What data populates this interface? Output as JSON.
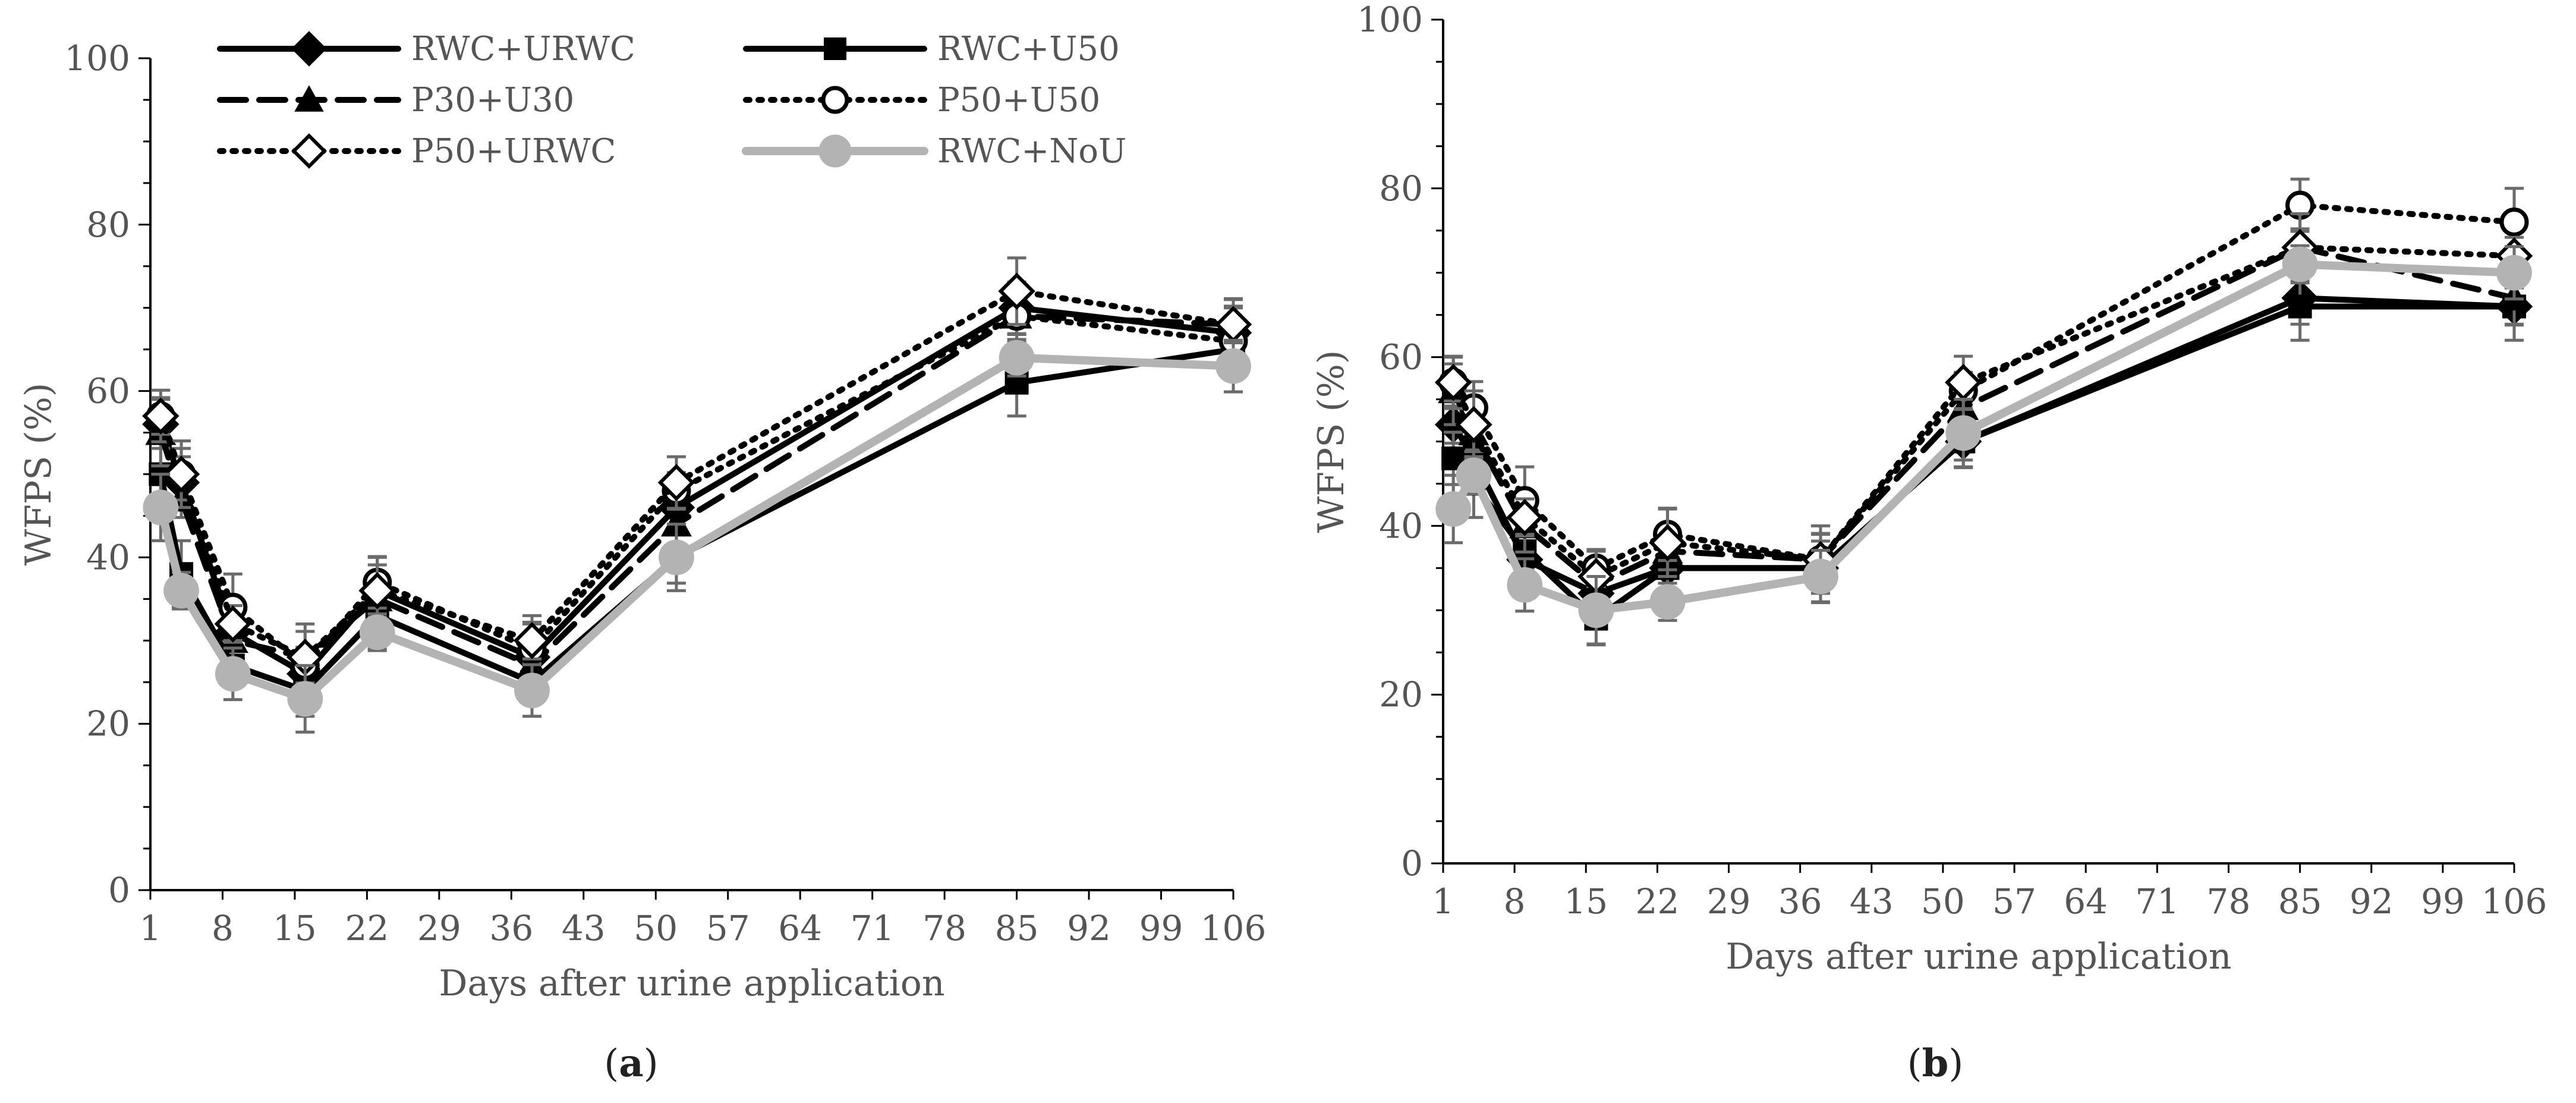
{
  "figure": {
    "panel_labels": [
      {
        "open": "(",
        "letter": "a",
        "close": ")"
      },
      {
        "open": "(",
        "letter": "b",
        "close": ")"
      }
    ]
  },
  "legend": [
    {
      "label": "RWC+URWC",
      "color": "#000000",
      "dash": "solid",
      "marker": "diamond-filled"
    },
    {
      "label": "RWC+U50",
      "color": "#000000",
      "dash": "solid",
      "marker": "square-filled"
    },
    {
      "label": "P30+U30",
      "color": "#000000",
      "dash": "dashed",
      "marker": "triangle-filled"
    },
    {
      "label": "P50+U50",
      "color": "#000000",
      "dash": "dotted",
      "marker": "circle-open"
    },
    {
      "label": "P50+URWC",
      "color": "#000000",
      "dash": "dotted",
      "marker": "diamond-open"
    },
    {
      "label": "RWC+NoU",
      "color": "#b3b3b3",
      "dash": "solid",
      "marker": "circle-gray"
    }
  ],
  "chart_data": [
    {
      "type": "line",
      "panel": "a",
      "title": "",
      "xlabel": "Days after urine application",
      "ylabel": "WFPS (%)",
      "xlim": [
        1,
        106
      ],
      "ylim": [
        0,
        100
      ],
      "x_ticks": [
        1,
        8,
        15,
        22,
        29,
        36,
        43,
        50,
        57,
        64,
        71,
        78,
        85,
        92,
        99,
        106
      ],
      "y_ticks": [
        0,
        20,
        40,
        60,
        80,
        100
      ],
      "x": [
        2,
        4,
        9,
        16,
        23,
        38,
        52,
        85,
        106
      ],
      "series": [
        {
          "name": "RWC+URWC",
          "values": [
            56,
            49,
            31,
            26,
            36,
            28,
            46,
            70,
            67
          ]
        },
        {
          "name": "RWC+U50",
          "values": [
            50,
            38,
            27,
            24,
            33,
            25,
            40,
            61,
            65
          ]
        },
        {
          "name": "P30+U30",
          "values": [
            55,
            47,
            30,
            28,
            35,
            27,
            44,
            69,
            68
          ]
        },
        {
          "name": "P50+U50",
          "values": [
            57,
            50,
            34,
            27,
            37,
            29,
            48,
            69,
            66
          ]
        },
        {
          "name": "P50+URWC",
          "values": [
            57,
            50,
            32,
            28,
            36,
            30,
            49,
            72,
            68
          ]
        },
        {
          "name": "RWC+NoU",
          "values": [
            46,
            36,
            26,
            23,
            31,
            24,
            40,
            64,
            63
          ]
        }
      ]
    },
    {
      "type": "line",
      "panel": "b",
      "title": "",
      "xlabel": "Days after urine application",
      "ylabel": "WFPS (%)",
      "xlim": [
        1,
        106
      ],
      "ylim": [
        0,
        100
      ],
      "x_ticks": [
        1,
        8,
        15,
        22,
        29,
        36,
        43,
        50,
        57,
        64,
        71,
        78,
        85,
        92,
        99,
        106
      ],
      "y_ticks": [
        0,
        20,
        40,
        60,
        80,
        100
      ],
      "x": [
        2,
        4,
        9,
        16,
        23,
        38,
        52,
        85,
        106
      ],
      "series": [
        {
          "name": "RWC+URWC",
          "values": [
            52,
            48,
            36,
            32,
            35,
            35,
            50,
            67,
            66
          ]
        },
        {
          "name": "RWC+U50",
          "values": [
            48,
            45,
            37,
            29,
            35,
            35,
            50,
            66,
            66
          ]
        },
        {
          "name": "P30+U30",
          "values": [
            56,
            51,
            40,
            33,
            37,
            36,
            54,
            73,
            67
          ]
        },
        {
          "name": "P50+U50",
          "values": [
            57,
            54,
            43,
            35,
            39,
            36,
            56,
            78,
            76
          ]
        },
        {
          "name": "P50+URWC",
          "values": [
            57,
            52,
            41,
            34,
            38,
            36,
            57,
            73,
            72
          ]
        },
        {
          "name": "RWC+NoU",
          "values": [
            42,
            46,
            33,
            30,
            31,
            34,
            51,
            71,
            70
          ]
        }
      ]
    }
  ]
}
